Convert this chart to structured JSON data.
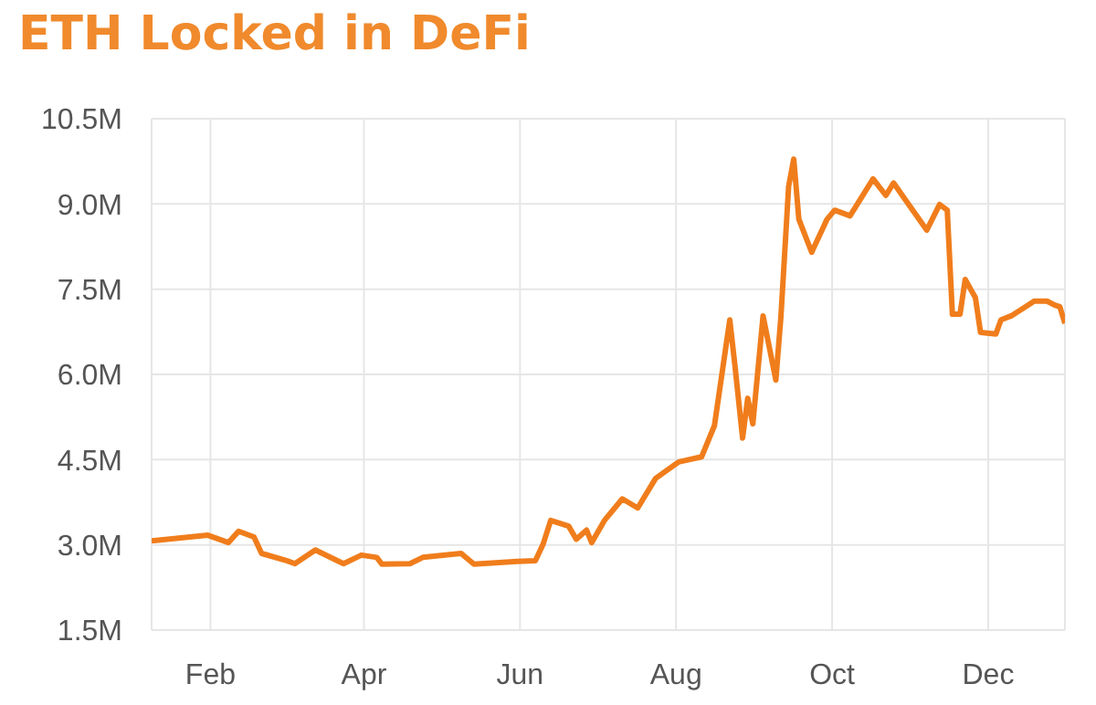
{
  "chart_data": {
    "type": "line",
    "title": "ETH Locked in DeFi",
    "x": [
      "--01-09",
      "--01-31",
      "--02-08",
      "--02-12",
      "--02-18",
      "--02-21",
      "--03-02",
      "--03-05",
      "--03-13",
      "--03-24",
      "--03-31",
      "--04-06",
      "--04-08",
      "--04-19",
      "--04-24",
      "--05-09",
      "--05-14",
      "--05-31",
      "--06-07",
      "--06-10",
      "--06-13",
      "--06-20",
      "--06-23",
      "--06-27",
      "--06-29",
      "--07-04",
      "--07-11",
      "--07-17",
      "--07-24",
      "--08-02",
      "--08-11",
      "--08-16",
      "--08-22",
      "--08-24",
      "--08-27",
      "--08-29",
      "--08-31",
      "--09-04",
      "--09-09",
      "--09-11",
      "--09-14",
      "--09-16",
      "--09-18",
      "--09-23",
      "--09-29",
      "--10-02",
      "--10-08",
      "--10-17",
      "--10-22",
      "--10-25",
      "--10-30",
      "--11-07",
      "--11-12",
      "--11-15",
      "--11-17",
      "--11-20",
      "--11-22",
      "--11-26",
      "--11-28",
      "--12-04",
      "--12-06",
      "--12-10",
      "--12-19",
      "--12-24",
      "--12-27",
      "--12-29",
      "--12-31"
    ],
    "series": [
      {
        "color": "#f07d1c",
        "values": [
          3.07,
          3.17,
          3.04,
          3.24,
          3.14,
          2.85,
          2.72,
          2.67,
          2.91,
          2.67,
          2.82,
          2.78,
          2.66,
          2.67,
          2.78,
          2.85,
          2.66,
          2.71,
          2.72,
          3.01,
          3.43,
          3.33,
          3.1,
          3.26,
          3.04,
          3.43,
          3.81,
          3.65,
          4.17,
          4.46,
          4.55,
          5.1,
          6.96,
          6.16,
          4.88,
          5.58,
          5.13,
          7.03,
          5.9,
          7.03,
          9.31,
          9.79,
          8.73,
          8.15,
          8.73,
          8.89,
          8.79,
          9.44,
          9.15,
          9.37,
          9.05,
          8.54,
          8.99,
          8.89,
          7.06,
          7.06,
          7.67,
          7.35,
          6.74,
          6.71,
          6.96,
          7.03,
          7.29,
          7.29,
          7.22,
          7.19,
          6.9
        ]
      }
    ],
    "xlim": [
      "--01-09",
      "--12-31"
    ],
    "xticks": [
      {
        "value": "--02-01",
        "label": "Feb"
      },
      {
        "value": "--04-01",
        "label": "Apr"
      },
      {
        "value": "--06-01",
        "label": "Jun"
      },
      {
        "value": "--08-01",
        "label": "Aug"
      },
      {
        "value": "--10-01",
        "label": "Oct"
      },
      {
        "value": "--12-01",
        "label": "Dec"
      }
    ],
    "ylim": [
      1.5,
      10.5
    ],
    "yticks": [
      {
        "value": 1.5,
        "label": "1.5M"
      },
      {
        "value": 3,
        "label": "3.0M"
      },
      {
        "value": 4.5,
        "label": "4.5M"
      },
      {
        "value": 6,
        "label": "6.0M"
      },
      {
        "value": 7.5,
        "label": "7.5M"
      },
      {
        "value": 9,
        "label": "9.0M"
      },
      {
        "value": 10.5,
        "label": "10.5M"
      }
    ],
    "grid": true,
    "legend": false,
    "marker": "none",
    "line_style": "solid"
  }
}
